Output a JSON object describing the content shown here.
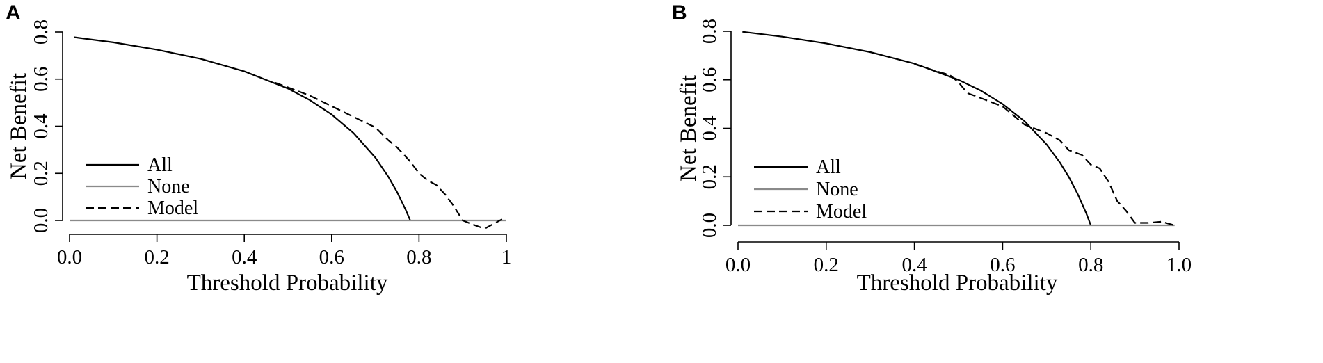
{
  "chart_data": [
    {
      "type": "line",
      "panel_label": "A",
      "xlabel": "Threshold Probability",
      "ylabel": "Net Benefit",
      "xlim": [
        0,
        1
      ],
      "ylim": [
        -0.05,
        0.84
      ],
      "x_ticks": [
        0,
        0.2,
        0.4,
        0.6,
        0.8,
        1
      ],
      "x_tick_labels": [
        "0.0",
        "0.2",
        "0.4",
        "0.6",
        "0.8",
        "1"
      ],
      "y_ticks": [
        0,
        0.2,
        0.4,
        0.6,
        0.8
      ],
      "y_tick_labels": [
        "0.0",
        "0.2",
        "0.4",
        "0.6",
        "0.8"
      ],
      "grid": false,
      "legend_position": "bottom-left",
      "series": [
        {
          "name": "All",
          "style": "solid",
          "color": "#000000",
          "x": [
            0.01,
            0.1,
            0.2,
            0.3,
            0.4,
            0.5,
            0.55,
            0.6,
            0.65,
            0.7,
            0.73,
            0.75,
            0.77,
            0.78
          ],
          "y": [
            0.778,
            0.756,
            0.725,
            0.686,
            0.633,
            0.56,
            0.511,
            0.45,
            0.371,
            0.267,
            0.185,
            0.12,
            0.043,
            0.0
          ]
        },
        {
          "name": "None",
          "style": "solid",
          "color": "#8a8a8a",
          "x": [
            0.0,
            1.0
          ],
          "y": [
            0.0,
            0.0
          ]
        },
        {
          "name": "Model",
          "style": "dashed",
          "color": "#000000",
          "x": [
            0.47,
            0.5,
            0.55,
            0.6,
            0.65,
            0.7,
            0.73,
            0.75,
            0.78,
            0.8,
            0.82,
            0.84,
            0.86,
            0.88,
            0.9,
            0.92,
            0.95,
            0.97,
            0.99
          ],
          "y": [
            0.585,
            0.565,
            0.53,
            0.485,
            0.44,
            0.395,
            0.34,
            0.31,
            0.25,
            0.2,
            0.17,
            0.15,
            0.11,
            0.06,
            0.0,
            -0.015,
            -0.035,
            -0.015,
            0.005
          ]
        }
      ]
    },
    {
      "type": "line",
      "panel_label": "B",
      "xlabel": "Threshold Probability",
      "ylabel": "Net Benefit",
      "xlim": [
        0,
        1
      ],
      "ylim": [
        -0.05,
        0.84
      ],
      "x_ticks": [
        0,
        0.2,
        0.4,
        0.6,
        0.8,
        1
      ],
      "x_tick_labels": [
        "0.0",
        "0.2",
        "0.4",
        "0.6",
        "0.8",
        "1.0"
      ],
      "y_ticks": [
        0,
        0.2,
        0.4,
        0.6,
        0.8
      ],
      "y_tick_labels": [
        "0.0",
        "0.2",
        "0.4",
        "0.6",
        "0.8"
      ],
      "grid": false,
      "legend_position": "bottom-left",
      "series": [
        {
          "name": "All",
          "style": "solid",
          "color": "#000000",
          "x": [
            0.01,
            0.1,
            0.2,
            0.3,
            0.4,
            0.5,
            0.55,
            0.6,
            0.65,
            0.7,
            0.73,
            0.75,
            0.77,
            0.79,
            0.8
          ],
          "y": [
            0.798,
            0.778,
            0.75,
            0.714,
            0.667,
            0.6,
            0.556,
            0.5,
            0.429,
            0.333,
            0.259,
            0.2,
            0.13,
            0.048,
            0.0
          ]
        },
        {
          "name": "None",
          "style": "solid",
          "color": "#8a8a8a",
          "x": [
            0.0,
            0.99
          ],
          "y": [
            0.0,
            0.0
          ]
        },
        {
          "name": "Model",
          "style": "dashed",
          "color": "#000000",
          "x": [
            0.4,
            0.45,
            0.48,
            0.5,
            0.52,
            0.55,
            0.6,
            0.65,
            0.7,
            0.73,
            0.75,
            0.78,
            0.8,
            0.82,
            0.84,
            0.86,
            0.88,
            0.9,
            0.93,
            0.96,
            0.99
          ],
          "y": [
            0.665,
            0.635,
            0.62,
            0.59,
            0.545,
            0.525,
            0.49,
            0.415,
            0.38,
            0.35,
            0.31,
            0.29,
            0.25,
            0.235,
            0.18,
            0.1,
            0.06,
            0.01,
            0.01,
            0.015,
            0.0
          ]
        }
      ]
    }
  ]
}
